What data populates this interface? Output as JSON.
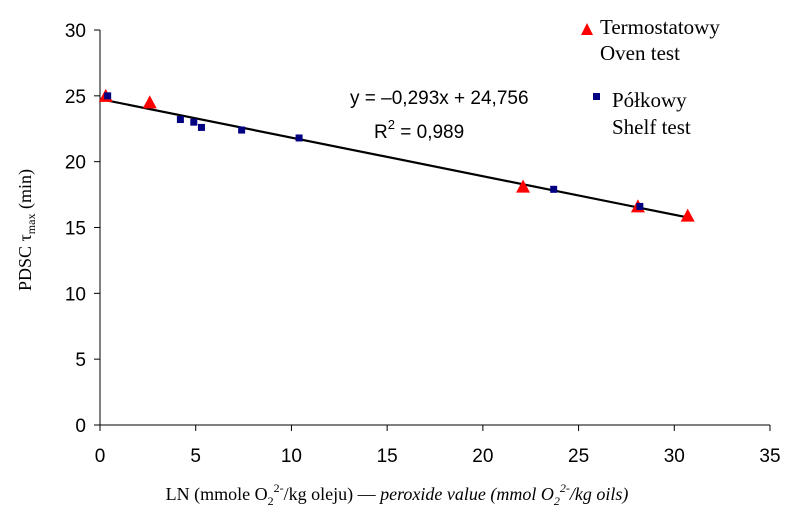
{
  "chart_data": {
    "type": "scatter",
    "xlabel": {
      "pl_prefix": "LN (mmole O",
      "pl_sub": "2",
      "pl_sup": "2-",
      "pl_suffix": "/kg oleju) — ",
      "en_prefix": "peroxide value (mmol O",
      "en_sub": "2",
      "en_sup": "2-",
      "en_suffix": "/kg oils)"
    },
    "ylabel": {
      "prefix": "PDSC   τ",
      "sub": "max",
      "suffix": " (min)"
    },
    "xlim": [
      0,
      35
    ],
    "ylim": [
      0,
      30
    ],
    "xticks": [
      "0",
      "5",
      "10",
      "15",
      "20",
      "25",
      "30",
      "35"
    ],
    "yticks": [
      "0",
      "5",
      "10",
      "15",
      "20",
      "25",
      "30"
    ],
    "grid": false,
    "legend_position": "top-right",
    "series": [
      {
        "name_line1": "Termostatowy",
        "name_line2": "Oven test",
        "marker": "triangle",
        "color": "#ff0000",
        "x": [
          0.3,
          2.6,
          22.1,
          28.1,
          30.7
        ],
        "y": [
          25.0,
          24.5,
          18.1,
          16.6,
          15.9
        ]
      },
      {
        "name_line1": "Półkowy",
        "name_line2": "Shelf test",
        "marker": "square",
        "color": "#000080",
        "x": [
          0.4,
          4.2,
          4.9,
          5.3,
          7.4,
          10.4,
          23.7,
          28.2
        ],
        "y": [
          25.0,
          23.2,
          23.0,
          22.6,
          22.4,
          21.8,
          17.9,
          16.6
        ]
      }
    ],
    "trendline": {
      "equation": "y = –0,293x + 24,756",
      "r2_prefix": "R",
      "r2_sup": "2",
      "r2_suffix": " = 0,989",
      "slope": -0.293,
      "intercept": 24.756,
      "x_range": [
        0,
        30.7
      ]
    }
  }
}
